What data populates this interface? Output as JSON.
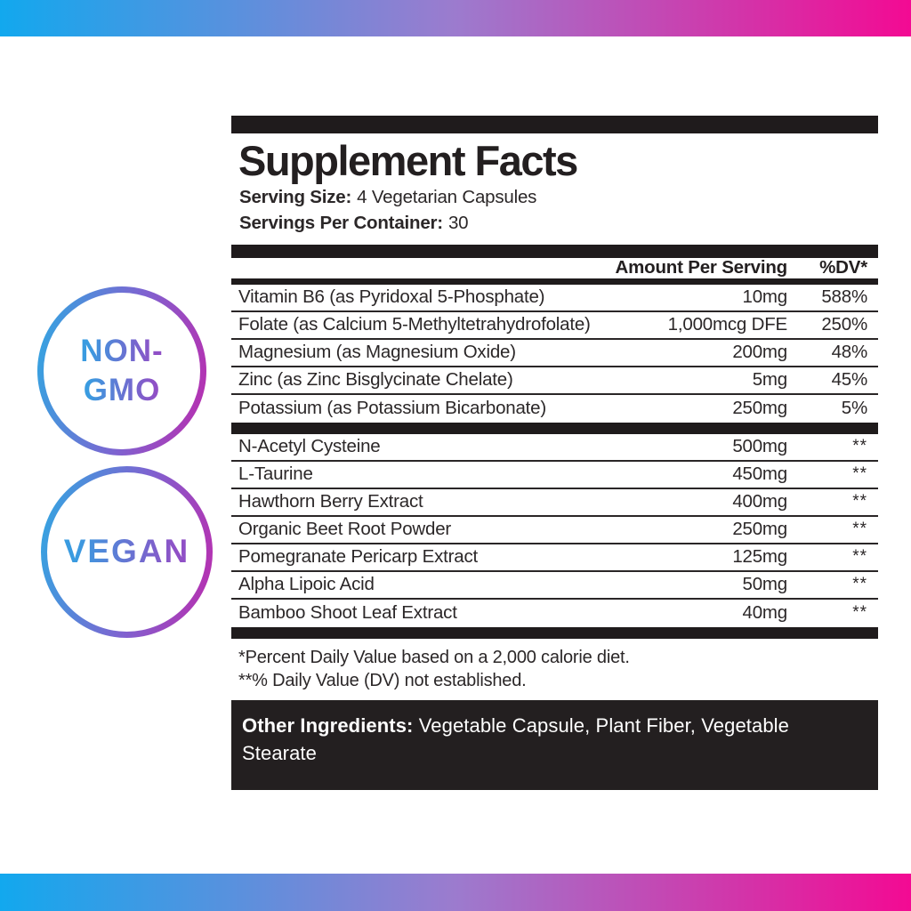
{
  "page": {
    "gradient_bar_colors": [
      "#12A8EE",
      "#9C7BCE",
      "#F30A93"
    ]
  },
  "badges": {
    "border_gradient": [
      "#2FA9E2",
      "#BC2BAD"
    ],
    "text_gradient": [
      "#3A9BE0",
      "#9050C6"
    ],
    "non_gmo": {
      "line1": "NON-",
      "line2": "GMO"
    },
    "vegan": {
      "label": "VEGAN"
    }
  },
  "panel": {
    "title": "Supplement Facts",
    "serving_size_label": "Serving Size:",
    "serving_size_value": "4 Vegetarian Capsules",
    "servings_per_container_label": "Servings Per Container:",
    "servings_per_container_value": "30",
    "columns": {
      "amount": "Amount Per Serving",
      "dv": "%DV*"
    },
    "rows": [
      {
        "section": 1,
        "name": "Vitamin B6 (as Pyridoxal 5-Phosphate)",
        "amount": "10mg",
        "dv": "588%"
      },
      {
        "section": 1,
        "name": "Folate (as Calcium 5-Methyltetrahydrofolate)",
        "amount": "1,000mcg DFE",
        "dv": "250%"
      },
      {
        "section": 1,
        "name": "Magnesium (as Magnesium Oxide)",
        "amount": "200mg",
        "dv": "48%"
      },
      {
        "section": 1,
        "name": "Zinc (as Zinc Bisglycinate Chelate)",
        "amount": "5mg",
        "dv": "45%"
      },
      {
        "section": 1,
        "name": "Potassium (as Potassium Bicarbonate)",
        "amount": "250mg",
        "dv": "5%"
      },
      {
        "section": 2,
        "name": "N-Acetyl Cysteine",
        "amount": "500mg",
        "dv": "**"
      },
      {
        "section": 2,
        "name": "L-Taurine",
        "amount": "450mg",
        "dv": "**"
      },
      {
        "section": 2,
        "name": "Hawthorn Berry Extract",
        "amount": "400mg",
        "dv": "**"
      },
      {
        "section": 2,
        "name": "Organic Beet Root Powder",
        "amount": "250mg",
        "dv": "**"
      },
      {
        "section": 2,
        "name": "Pomegranate Pericarp Extract",
        "amount": "125mg",
        "dv": "**"
      },
      {
        "section": 2,
        "name": "Alpha Lipoic Acid",
        "amount": "50mg",
        "dv": "**"
      },
      {
        "section": 2,
        "name": "Bamboo Shoot Leaf Extract",
        "amount": "40mg",
        "dv": "**"
      }
    ],
    "footnotes": [
      "*Percent Daily Value based on a 2,000 calorie diet.",
      "**% Daily Value (DV) not established."
    ],
    "other_ingredients_label": "Other Ingredients:",
    "other_ingredients_value": "Vegetable Capsule, Plant Fiber, Vegetable Stearate"
  }
}
